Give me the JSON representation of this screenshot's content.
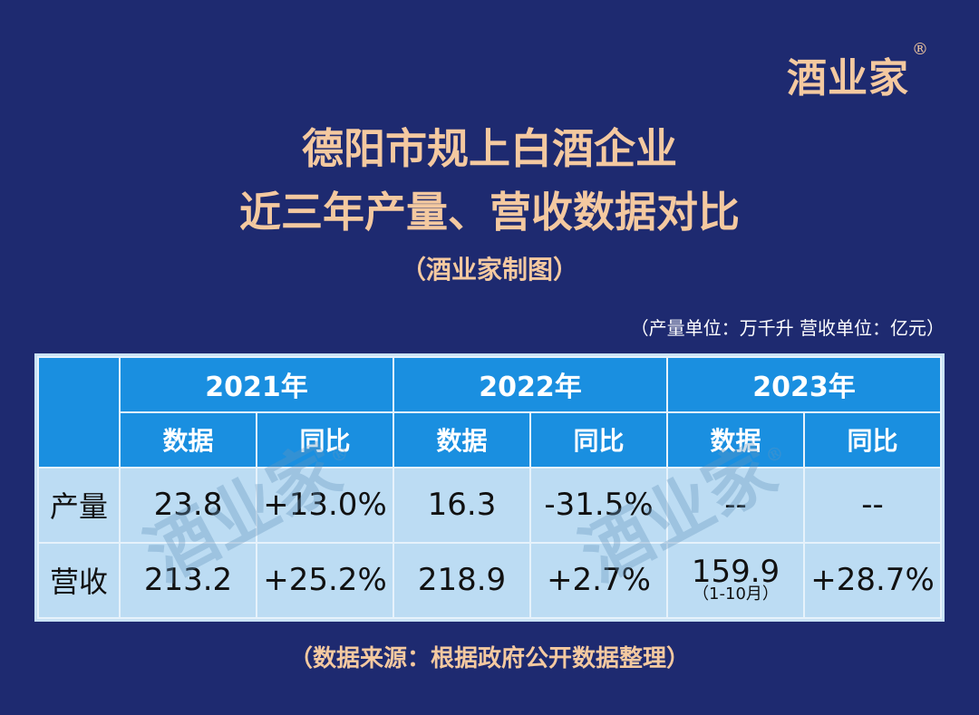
{
  "logo": {
    "text": "酒业家",
    "reg": "®"
  },
  "titles": {
    "line1": "德阳市规上白酒企业",
    "line2": "近三年产量、营收数据对比",
    "line3": "（酒业家制图）"
  },
  "units": "（产量单位：万千升  营收单位：亿元）",
  "watermark": {
    "text": "酒业家",
    "reg": "®"
  },
  "source": "（数据来源：根据政府公开数据整理）",
  "colors": {
    "background": "#1e2a70",
    "title": "#f4c9a0",
    "header": "#1a8fe0",
    "cell": "#bcdcf3"
  },
  "chart_data": {
    "type": "table",
    "years": [
      "2021年",
      "2022年",
      "2023年"
    ],
    "subheaders": [
      "数据",
      "同比"
    ],
    "rows": [
      {
        "label": "产量",
        "cells": [
          "23.8",
          "+13.0%",
          "16.3",
          "-31.5%",
          "--",
          "--"
        ]
      },
      {
        "label": "营收",
        "cells": [
          "213.2",
          "+25.2%",
          "218.9",
          "+2.7%",
          "159.9",
          "+28.7%"
        ],
        "note_2023": "（1-10月）"
      }
    ]
  }
}
